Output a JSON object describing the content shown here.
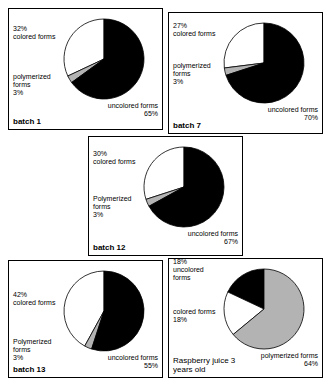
{
  "chart_data": [
    {
      "type": "pie",
      "title": "batch 1",
      "categories": [
        "colored forms",
        "polymerized forms",
        "uncolored forms"
      ],
      "values": [
        32,
        3,
        65
      ],
      "value_labels": [
        "32%",
        "3%",
        "65%"
      ],
      "colors": [
        "#ffffff",
        "#b3b3b3",
        "#000000"
      ]
    },
    {
      "type": "pie",
      "title": "batch 7",
      "categories": [
        "colored forms",
        "polymerized forms",
        "uncolored forms"
      ],
      "values": [
        27,
        3,
        70
      ],
      "value_labels": [
        "27%",
        "3%",
        "70%"
      ],
      "colors": [
        "#ffffff",
        "#b3b3b3",
        "#000000"
      ]
    },
    {
      "type": "pie",
      "title": "batch 12",
      "categories": [
        "colored forms",
        "Polymerized forms",
        "uncolored forms"
      ],
      "values": [
        30,
        3,
        67
      ],
      "value_labels": [
        "30%",
        "3%",
        "67%"
      ],
      "colors": [
        "#ffffff",
        "#b3b3b3",
        "#000000"
      ]
    },
    {
      "type": "pie",
      "title": "batch 13",
      "categories": [
        "colored forms",
        "Polymerized forms",
        "uncolored forms"
      ],
      "values": [
        42,
        3,
        55
      ],
      "value_labels": [
        "42%",
        "3%",
        "55%"
      ],
      "colors": [
        "#ffffff",
        "#b3b3b3",
        "#000000"
      ]
    },
    {
      "type": "pie",
      "title": "Raspberry juice 3 years old",
      "categories": [
        "uncolored forms",
        "colored forms",
        "polymerized forms"
      ],
      "values": [
        18,
        18,
        64
      ],
      "value_labels": [
        "18%",
        "18%",
        "64%"
      ],
      "colors": [
        "#000000",
        "#ffffff",
        "#b3b3b3"
      ]
    }
  ]
}
